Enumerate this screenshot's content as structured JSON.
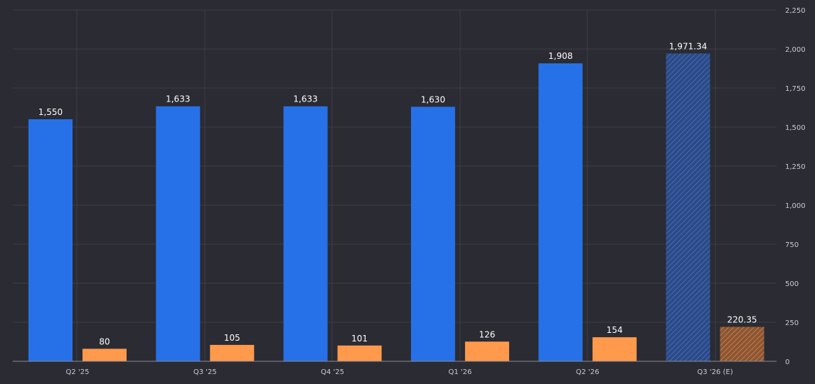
{
  "chart_data": {
    "type": "bar",
    "categories": [
      "Q2 '25",
      "Q3 '25",
      "Q4 '25",
      "Q1 '26",
      "Q2 '26",
      "Q3 '26 (E)"
    ],
    "series": [
      {
        "values": [
          1550,
          1633,
          1633,
          1630,
          1908,
          1971.34
        ],
        "labels": [
          "1,550",
          "1,633",
          "1,633",
          "1,630",
          "1,908",
          "1,971.34"
        ],
        "color": "#2671e8"
      },
      {
        "values": [
          80,
          105,
          101,
          126,
          154,
          220.35
        ],
        "labels": [
          "80",
          "105",
          "101",
          "126",
          "154",
          "220.35"
        ],
        "color": "#ff9a4d"
      }
    ],
    "estimated_category_index": 5,
    "ylim": [
      0,
      2250
    ],
    "yticks": [
      0,
      250,
      500,
      750,
      1000,
      1250,
      1500,
      1750,
      2000,
      2250
    ],
    "ytick_labels": [
      "0",
      "250",
      "500",
      "750",
      "1,000",
      "1,250",
      "1,500",
      "1,750",
      "2,000",
      "2,250"
    ],
    "y_axis_side": "right",
    "grid": true,
    "legend": "none"
  },
  "colors": {
    "background": "#2b2b33",
    "grid": "#3d3e47",
    "axis": "#8a8b94",
    "estimated_primary": "#2f4d8a",
    "estimated_secondary": "#8e5a3a"
  }
}
